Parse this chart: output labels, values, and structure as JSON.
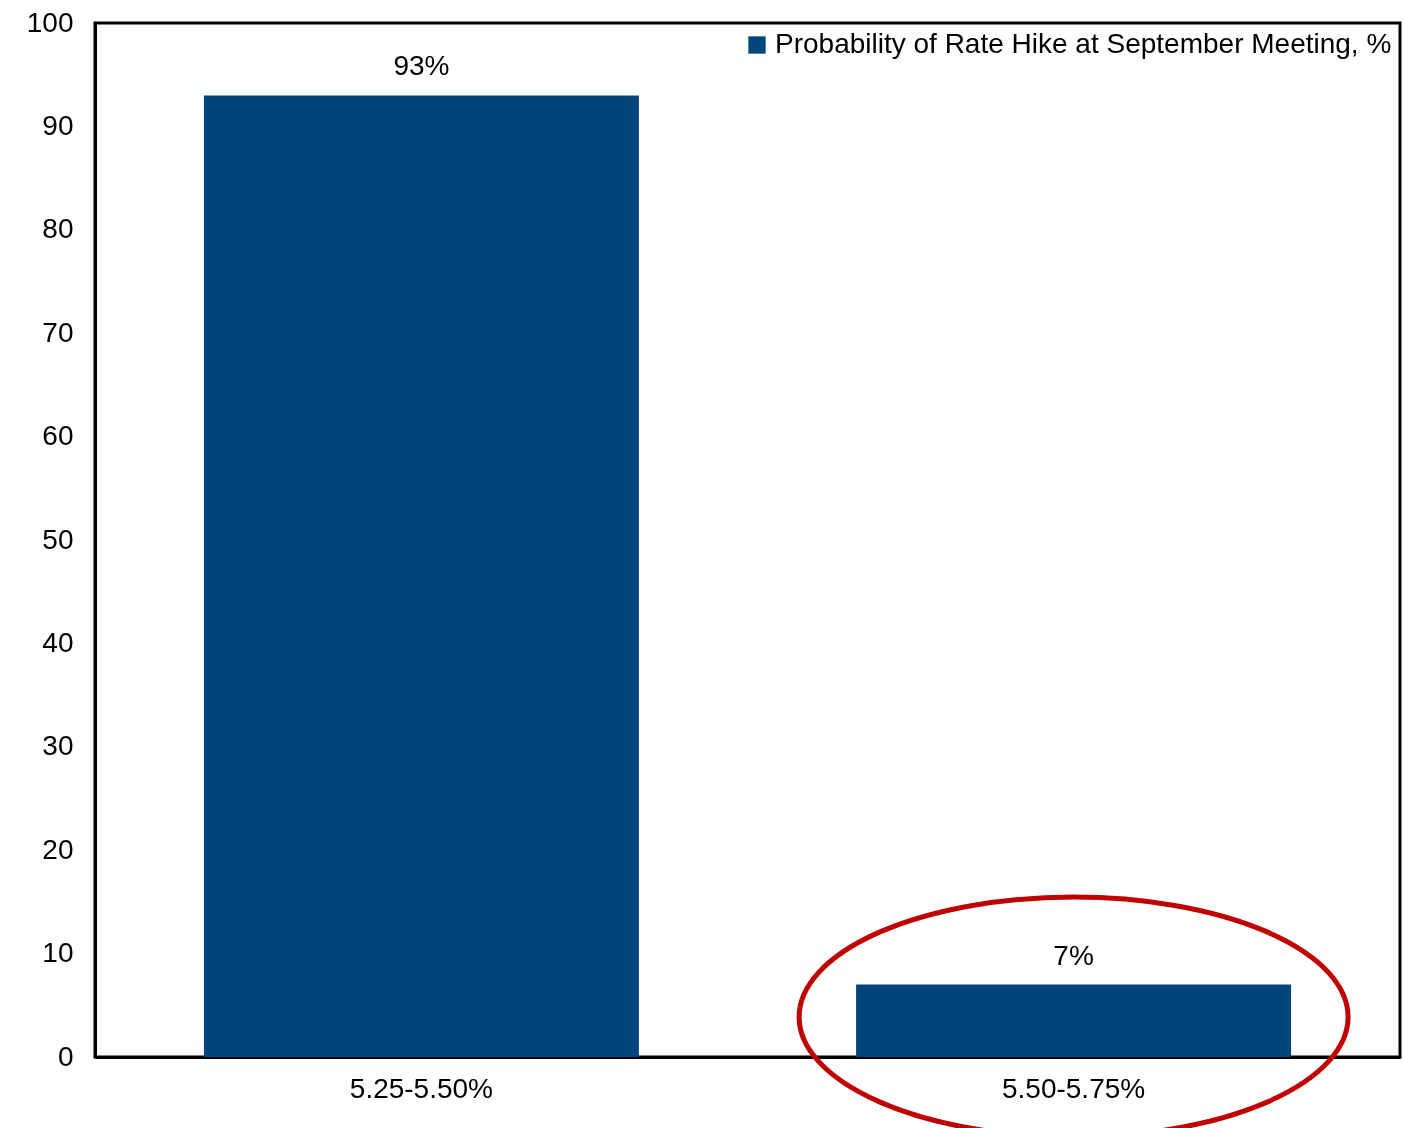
{
  "chart_data": {
    "type": "bar",
    "categories": [
      "5.25-5.50%",
      "5.50-5.75%"
    ],
    "series": [
      {
        "name": "Probability of Rate Hike at September Meeting, %",
        "color": "#00467a",
        "values": [
          93,
          7
        ],
        "value_labels": [
          "93%",
          "7%"
        ]
      }
    ],
    "ylim": [
      0,
      100
    ],
    "yticks": [
      0,
      10,
      20,
      30,
      40,
      50,
      60,
      70,
      80,
      90,
      100
    ],
    "grid": false,
    "legend": "top right"
  }
}
